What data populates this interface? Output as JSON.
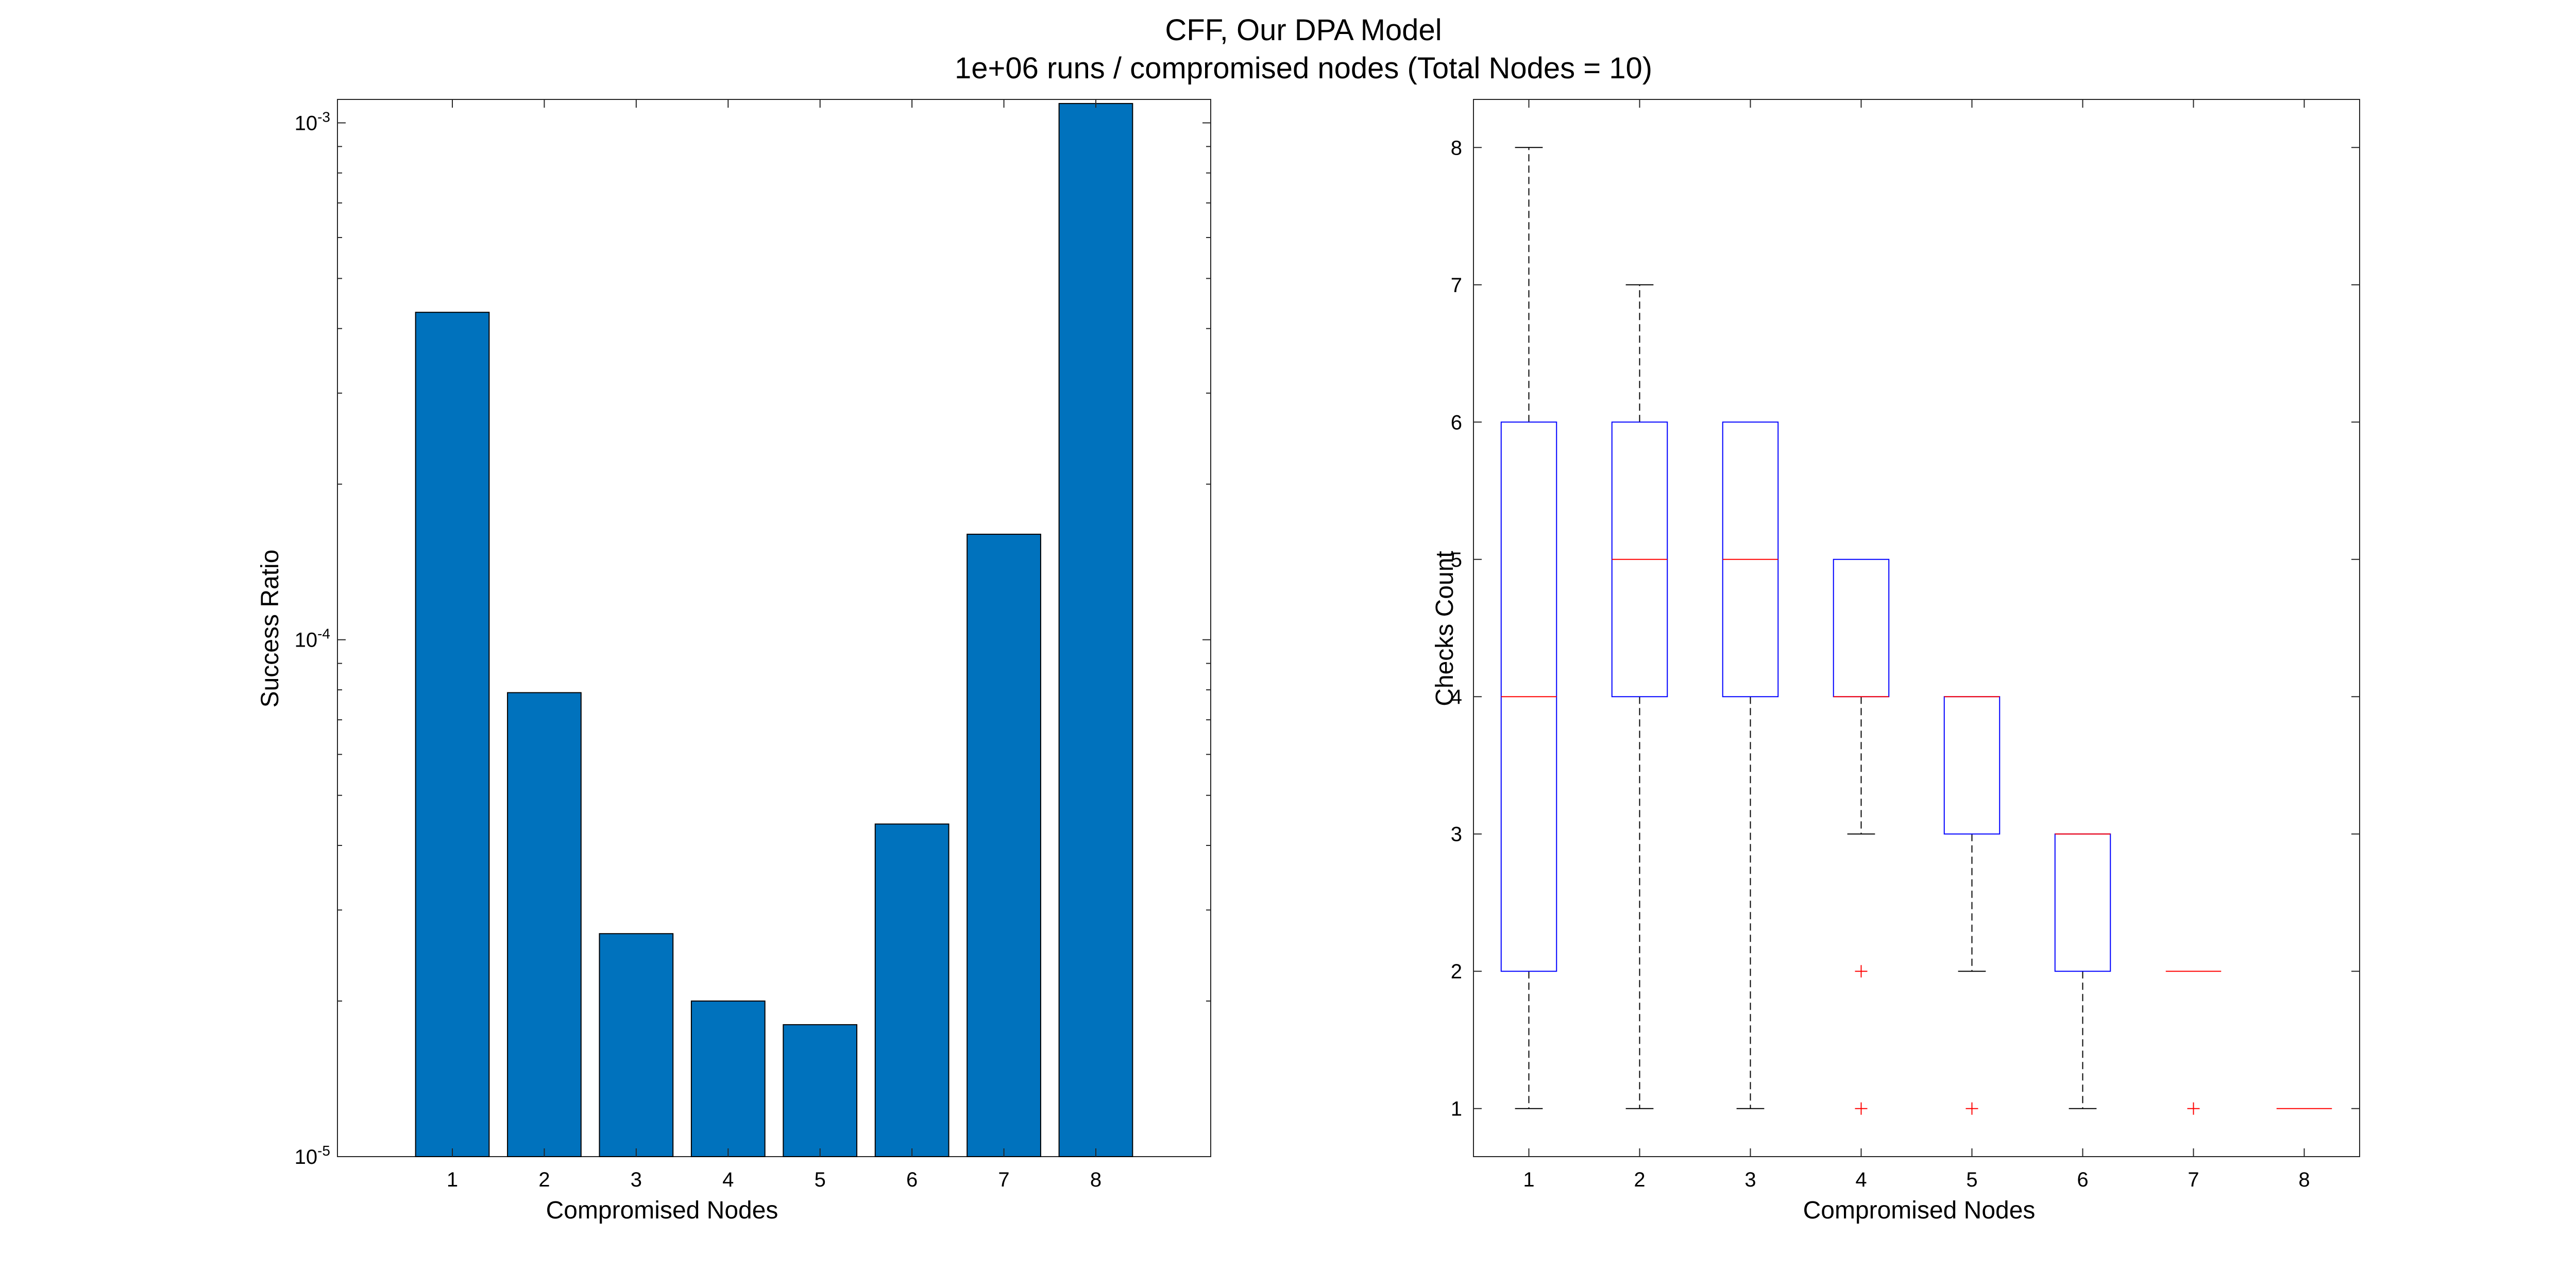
{
  "figure": {
    "title_line1": "CFF, Our DPA Model",
    "title_line2": "1e+06 runs / compromised nodes (Total Nodes = 10)"
  },
  "chart_data": [
    {
      "type": "bar",
      "yscale": "log",
      "categories": [
        "1",
        "2",
        "3",
        "4",
        "5",
        "6",
        "7",
        "8"
      ],
      "values": [
        0.00043,
        7.9e-05,
        2.7e-05,
        2e-05,
        1.8e-05,
        4.4e-05,
        0.00016,
        0.00109
      ],
      "xlabel": "Compromised Nodes",
      "ylabel": "Success Ratio",
      "ylim": [
        1e-05,
        0.00111
      ],
      "yticks": [
        {
          "value": 1e-05,
          "base": "10",
          "exp": "-5"
        },
        {
          "value": 0.0001,
          "base": "10",
          "exp": "-4"
        },
        {
          "value": 0.001,
          "base": "10",
          "exp": "-3"
        }
      ],
      "bar_color": "#0072BD"
    },
    {
      "type": "boxplot",
      "categories": [
        "1",
        "2",
        "3",
        "4",
        "5",
        "6",
        "7",
        "8"
      ],
      "boxes": [
        {
          "lower_whisker": 1,
          "q1": 2,
          "median": 4,
          "q3": 6,
          "upper_whisker": 8,
          "outliers": []
        },
        {
          "lower_whisker": 1,
          "q1": 4,
          "median": 5,
          "q3": 6,
          "upper_whisker": 7,
          "outliers": []
        },
        {
          "lower_whisker": 1,
          "q1": 4,
          "median": 5,
          "q3": 6,
          "upper_whisker": 6,
          "outliers": []
        },
        {
          "lower_whisker": 3,
          "q1": 4,
          "median": 4,
          "q3": 5,
          "upper_whisker": 5,
          "outliers": [
            2,
            1
          ]
        },
        {
          "lower_whisker": 2,
          "q1": 3,
          "median": 4,
          "q3": 4,
          "upper_whisker": 4,
          "outliers": [
            1
          ]
        },
        {
          "lower_whisker": 1,
          "q1": 2,
          "median": 3,
          "q3": 3,
          "upper_whisker": 3,
          "outliers": []
        },
        {
          "lower_whisker": 2,
          "q1": 2,
          "median": 2,
          "q3": 2,
          "upper_whisker": 2,
          "outliers": [
            1
          ]
        },
        {
          "lower_whisker": 1,
          "q1": 1,
          "median": 1,
          "q3": 1,
          "upper_whisker": 1,
          "outliers": []
        }
      ],
      "xlabel": "Compromised Nodes",
      "ylabel": "Checks Count",
      "ylim": [
        0.65,
        8.35
      ],
      "yticks": [
        "1",
        "2",
        "3",
        "4",
        "5",
        "6",
        "7",
        "8"
      ],
      "box_color": "#0000FF",
      "median_color": "#FF0000",
      "whisker_color": "#000000",
      "outlier_color": "#FF0000"
    }
  ]
}
